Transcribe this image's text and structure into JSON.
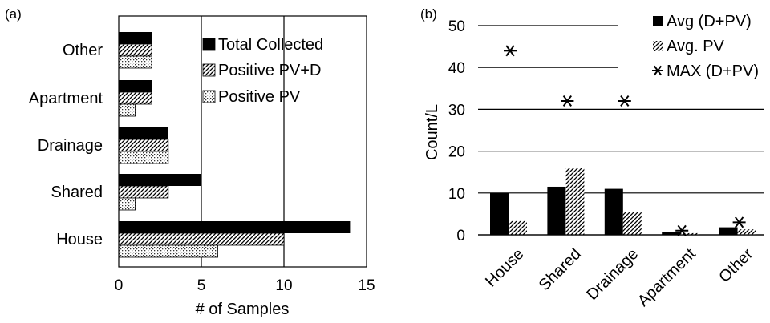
{
  "chart_data": [
    {
      "panel_label": "(a)",
      "type": "bar",
      "orientation": "horizontal",
      "categories": [
        "House",
        "Shared",
        "Drainage",
        "Apartment",
        "Other"
      ],
      "series": [
        {
          "name": "Total Collected",
          "values": [
            14,
            5,
            3,
            2,
            2
          ],
          "pattern": "solid",
          "color": "#000000"
        },
        {
          "name": "Positive PV+D",
          "values": [
            10,
            3,
            3,
            2,
            2
          ],
          "pattern": "hatch",
          "color": "#000000"
        },
        {
          "name": "Positive PV",
          "values": [
            6,
            1,
            3,
            1,
            2
          ],
          "pattern": "dots",
          "color": "#000000"
        }
      ],
      "xlabel": "# of Samples",
      "ylabel": "",
      "xlim": [
        0,
        15
      ],
      "xticks": [
        0,
        5,
        10,
        15
      ],
      "grid": "vertical",
      "legend": "top-right"
    },
    {
      "panel_label": "(b)",
      "type": "bar",
      "categories": [
        "House",
        "Shared",
        "Drainage",
        "Apartment",
        "Other"
      ],
      "series": [
        {
          "name": "Avg (D+PV)",
          "kind": "bar",
          "values": [
            10,
            11.5,
            11,
            0.7,
            1.8
          ],
          "pattern": "solid",
          "color": "#000000"
        },
        {
          "name": "Avg. PV",
          "kind": "bar",
          "values": [
            3.3,
            16,
            5.5,
            0.4,
            1.3
          ],
          "pattern": "hatch",
          "color": "#000000"
        },
        {
          "name": "MAX (D+PV)",
          "kind": "marker",
          "values": [
            44,
            32,
            32,
            1,
            3
          ],
          "marker": "asterisk",
          "color": "#000000"
        }
      ],
      "xlabel": "",
      "ylabel": "Count/L",
      "ylim": [
        0,
        50
      ],
      "yticks": [
        0,
        10,
        20,
        30,
        40,
        50
      ],
      "grid": "horizontal",
      "legend": "top-right"
    }
  ]
}
